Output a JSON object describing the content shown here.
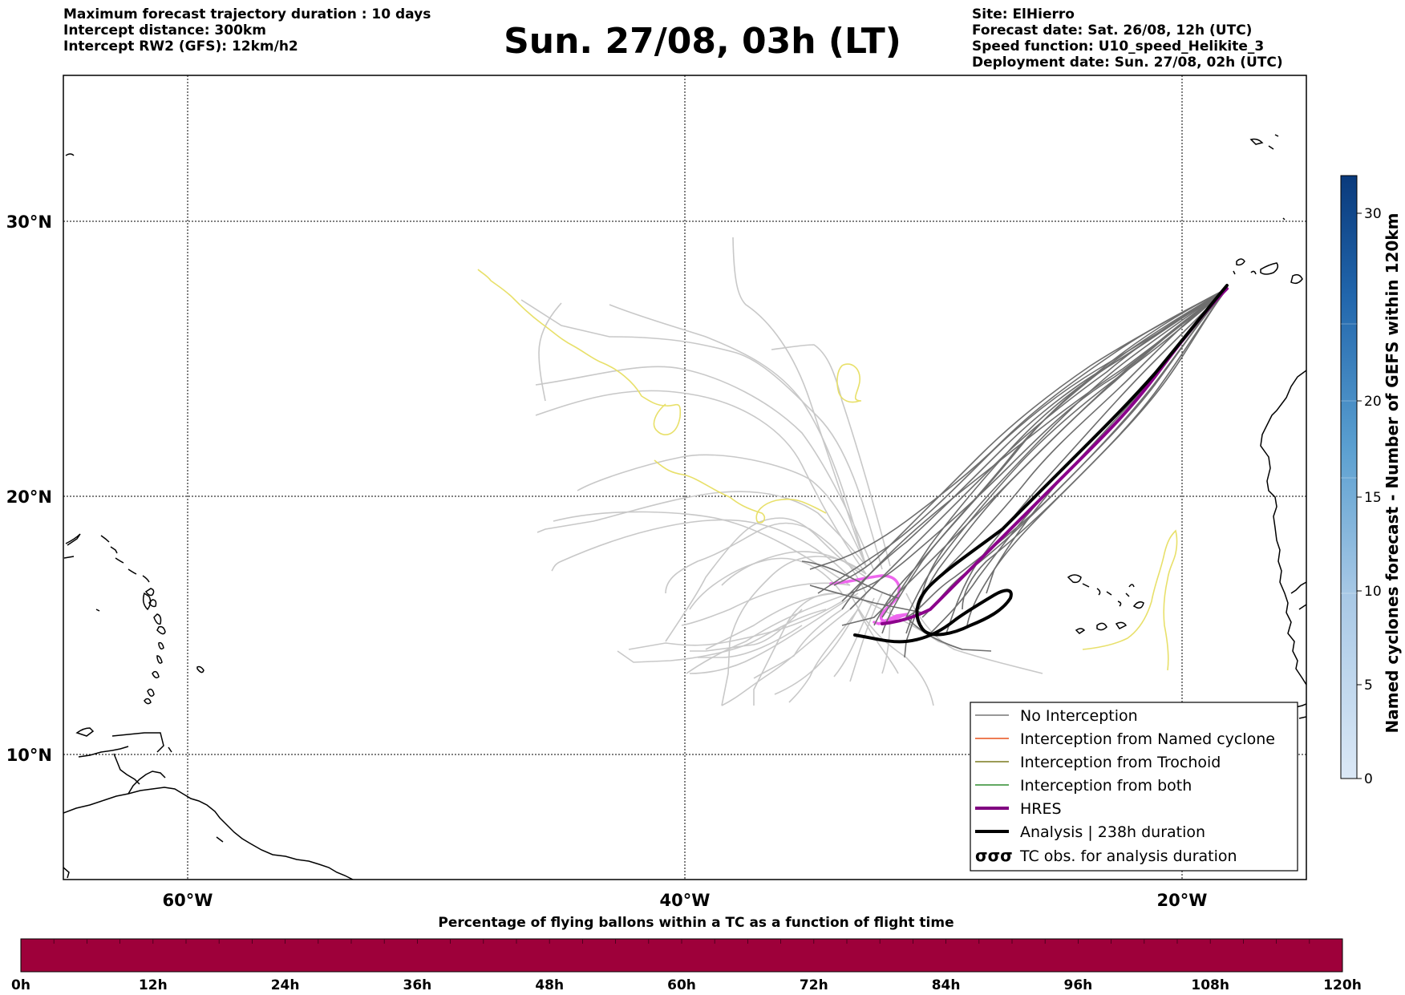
{
  "header": {
    "left_lines": [
      "Maximum forecast trajectory duration : 10 days",
      "Intercept distance: 300km",
      "Intercept RW2 (GFS):  12km/h2"
    ],
    "title": "Sun. 27/08, 03h (LT)",
    "right_lines": [
      "Site: ElHierro",
      "Forecast date: Sat. 26/08, 12h (UTC)",
      "Speed function: U10_speed_Helikite_3",
      "Deployment date: Sun. 27/08, 02h (UTC)"
    ]
  },
  "map": {
    "lat_labels": [
      "30°N",
      "20°N",
      "10°N"
    ],
    "lon_labels": [
      "60°W",
      "40°W",
      "20°W"
    ]
  },
  "legend": {
    "items": [
      {
        "label": "No Interception",
        "color": "#777777",
        "style": "thin"
      },
      {
        "label": "Interception from Named cyclone",
        "color": "#e8501c",
        "style": "thin"
      },
      {
        "label": "Interception from Trochoid",
        "color": "#7a7a1e",
        "style": "thin"
      },
      {
        "label": "Interception from both",
        "color": "#2e8b2e",
        "style": "thin"
      },
      {
        "label": "HRES",
        "color": "#800080",
        "style": "thick"
      },
      {
        "label": "Analysis | 238h duration",
        "color": "#000000",
        "style": "thick"
      },
      {
        "label": "TC obs. for analysis duration",
        "color": "#000000",
        "style": "symbol",
        "symbol": "σσσ"
      }
    ]
  },
  "colorbar_right": {
    "label": "Named cyclones forecast - Number of GEFS within 120km",
    "ticks": [
      "0",
      "5",
      "10",
      "15",
      "20",
      "30"
    ],
    "color_low": "#dbe8f6",
    "color_high": "#0a3a7c"
  },
  "colorbar_bottom": {
    "title": "Percentage of flying ballons within a TC as a function of flight time",
    "ticks": [
      "0h",
      "12h",
      "24h",
      "36h",
      "48h",
      "60h",
      "72h",
      "84h",
      "96h",
      "108h",
      "120h"
    ],
    "color": "#9e003a"
  },
  "colors": {
    "no_interception": "#6e6e6e",
    "light_traj": "#c8c8c8",
    "yellow_traj": "#e8e06a",
    "hres": "#8b008b",
    "magenta_traj": "#ee66ee",
    "analysis": "#000000",
    "coast": "#000000"
  }
}
